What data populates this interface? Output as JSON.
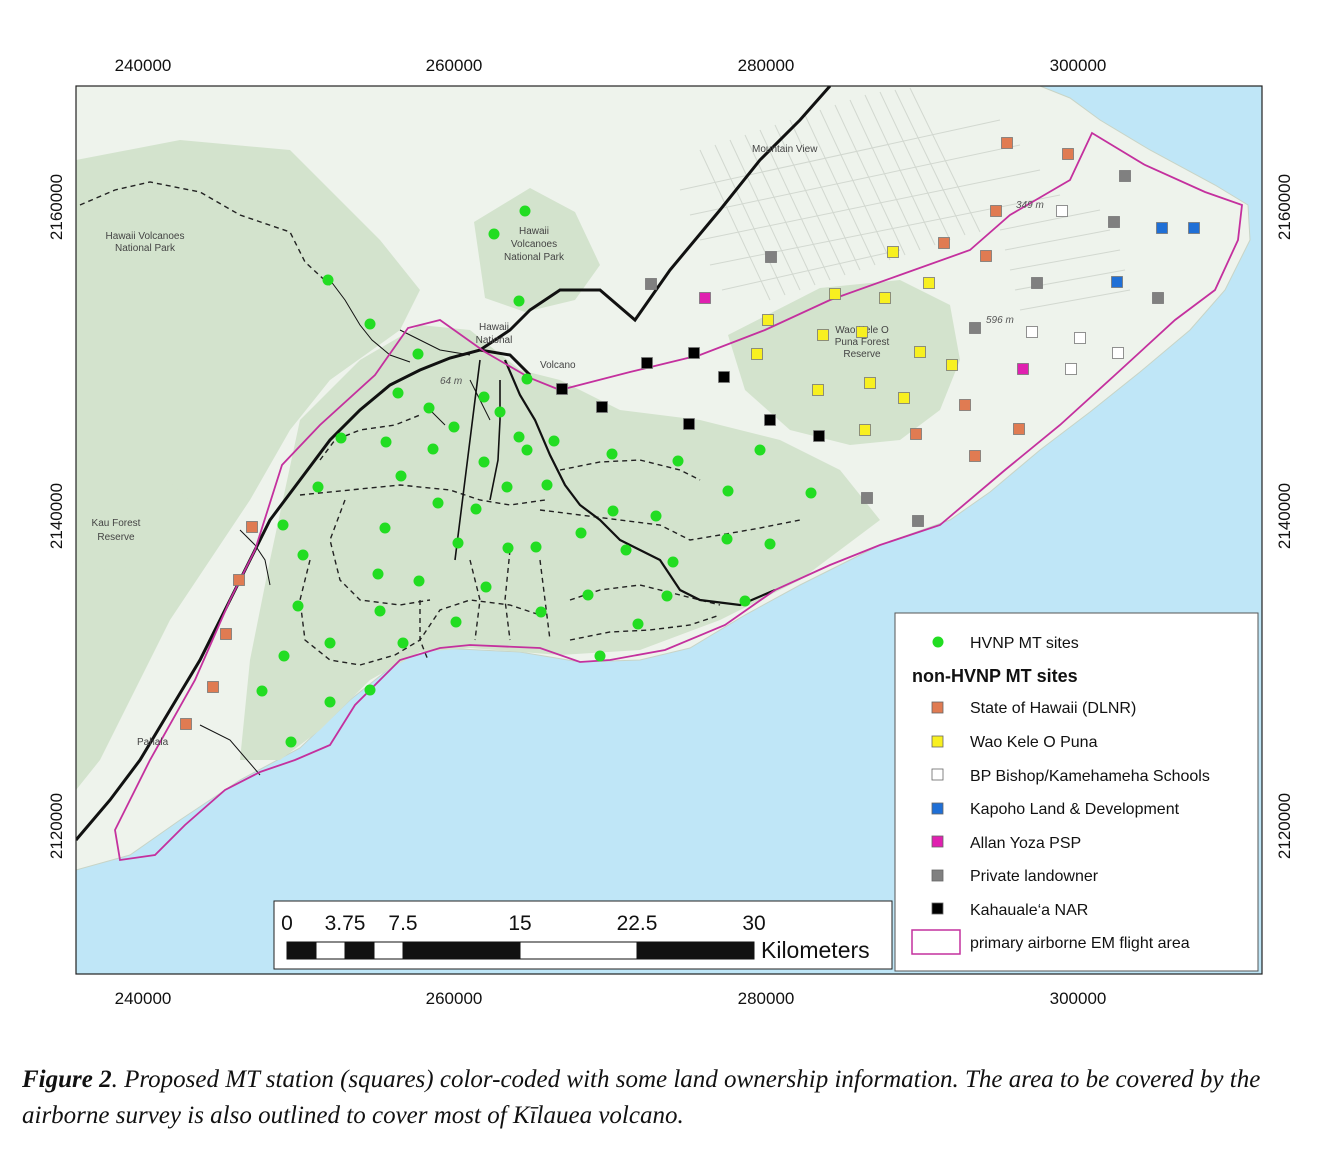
{
  "axes": {
    "x_ticks": [
      "240000",
      "260000",
      "280000",
      "300000"
    ],
    "y_ticks": [
      "2160000",
      "2140000",
      "2120000"
    ]
  },
  "places": [
    {
      "id": "mountain-view",
      "text": "Mountain View"
    },
    {
      "id": "hvnp-west-1",
      "text": "Hawaii Volcanoes"
    },
    {
      "id": "hvnp-west-2",
      "text": "National Park"
    },
    {
      "id": "hvnp-north-1",
      "text": "Hawaii"
    },
    {
      "id": "hvnp-north-2",
      "text": "Volcanoes"
    },
    {
      "id": "hvnp-north-3",
      "text": "National Park"
    },
    {
      "id": "hvnp-center-1",
      "text": "Hawaii"
    },
    {
      "id": "hvnp-center-2",
      "text": "National"
    },
    {
      "id": "volcano",
      "text": "Volcano"
    },
    {
      "id": "wao-1",
      "text": "Wao Kele O"
    },
    {
      "id": "wao-2",
      "text": "Puna Forest"
    },
    {
      "id": "wao-3",
      "text": "Reserve"
    },
    {
      "id": "kau-1",
      "text": "Kau Forest"
    },
    {
      "id": "kau-2",
      "text": "Reserve"
    },
    {
      "id": "pahala",
      "text": "Pahala"
    },
    {
      "id": "elev-349",
      "text": "349 m"
    },
    {
      "id": "elev-596",
      "text": "596 m"
    },
    {
      "id": "elev-64",
      "text": "64 m"
    }
  ],
  "legend": {
    "hvnp_label": "HVNP MT sites",
    "heading": "non-HVNP MT sites",
    "items": [
      {
        "key": "dlnr",
        "label": "State of Hawaii (DLNR)",
        "color": "#e07b52"
      },
      {
        "key": "wao",
        "label": "Wao Kele O Puna",
        "color": "#f8f020"
      },
      {
        "key": "bishop",
        "label": "BP Bishop/Kamehameha Schools",
        "color": "#ffffff"
      },
      {
        "key": "kapoho",
        "label": "Kapoho Land & Development",
        "color": "#1f6fd6"
      },
      {
        "key": "yoza",
        "label": "Allan Yoza PSP",
        "color": "#e020b0"
      },
      {
        "key": "private",
        "label": "Private landowner",
        "color": "#808080"
      },
      {
        "key": "nar",
        "label": "Kahauale‘a NAR",
        "color": "#000000"
      }
    ],
    "flight_area_label": "primary airborne EM flight area",
    "hvnp_color": "#22dd22",
    "flight_area_color": "#c4309e"
  },
  "scale_bar": {
    "ticks": [
      "0",
      "3.75",
      "7.5",
      "15",
      "22.5",
      "30"
    ],
    "unit": "Kilometers"
  },
  "colors": {
    "ocean": "#bfe6f7",
    "land": "#eef3ec",
    "park": "#d3e3cd"
  },
  "caption": {
    "label": "Figure 2",
    "text": ". Proposed MT station (squares) color-coded with some land ownership information. The area to be covered by the airborne survey is also outlined to cover most of Kīlauea volcano."
  }
}
